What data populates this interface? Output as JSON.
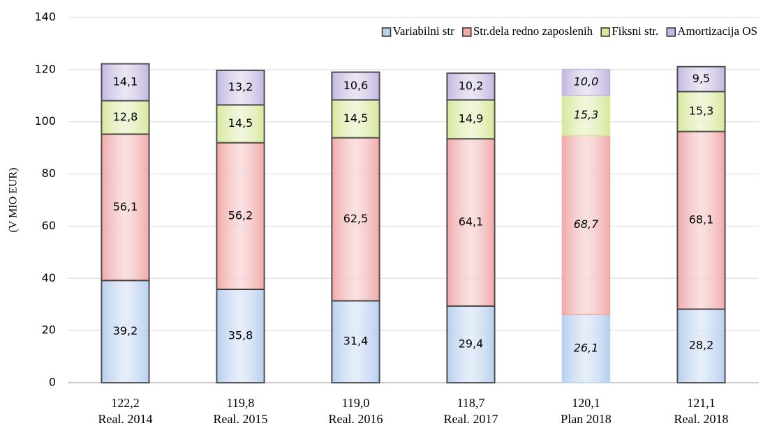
{
  "chart_data": {
    "type": "stacked_bar",
    "y_label": "(V MIO EUR)",
    "categories": [
      "Real. 2014",
      "Real. 2015",
      "Real. 2016",
      "Real. 2017",
      "Plan 2018",
      "Real. 2018"
    ],
    "totals": [
      122.2,
      119.8,
      119.0,
      118.7,
      120.1,
      121.1
    ],
    "total_labels": [
      "122,2",
      "119,8",
      "119,0",
      "118,7",
      "120,1",
      "121,1"
    ],
    "italic": [
      false,
      false,
      false,
      false,
      true,
      false
    ],
    "series": [
      {
        "name": "Variabilni str",
        "color": "#b8cfee",
        "values": [
          39.2,
          35.8,
          31.4,
          29.4,
          26.1,
          28.2
        ],
        "value_labels": [
          "39,2",
          "35,8",
          "31,4",
          "29,4",
          "26,1",
          "28,2"
        ]
      },
      {
        "name": "Str.dela redno zaposlenih",
        "color": "#f0aaaa",
        "values": [
          56.1,
          56.2,
          62.5,
          64.1,
          68.7,
          68.1
        ],
        "value_labels": [
          "56,1",
          "56,2",
          "62,5",
          "64,1",
          "68,7",
          "68,1"
        ]
      },
      {
        "name": "Fiksni str.",
        "color": "#d6e89c",
        "values": [
          12.8,
          14.5,
          14.5,
          14.9,
          15.3,
          15.3
        ],
        "value_labels": [
          "12,8",
          "14,5",
          "14,5",
          "14,9",
          "15,3",
          "15,3"
        ]
      },
      {
        "name": "Amortizacija OS",
        "color": "#c4b6e0",
        "values": [
          14.1,
          13.2,
          10.6,
          10.2,
          10.0,
          9.5
        ],
        "value_labels": [
          "14,1",
          "13,2",
          "10,6",
          "10,2",
          "10,0",
          "9,5"
        ]
      }
    ],
    "ylim": [
      0,
      140
    ],
    "yticks": [
      0,
      20,
      40,
      60,
      80,
      100,
      120,
      140
    ],
    "grid": true,
    "legend": "top-right"
  }
}
